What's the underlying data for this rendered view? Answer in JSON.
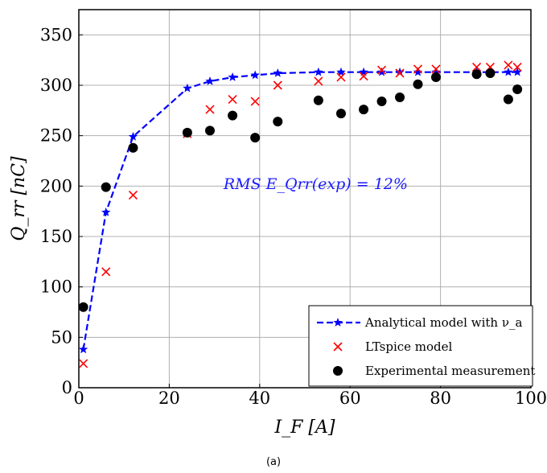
{
  "chart_data": {
    "type": "scatter",
    "title": "",
    "xlabel": "I_F [A]",
    "ylabel": "Q_rr [nC]",
    "xlim": [
      0,
      100
    ],
    "ylim": [
      0,
      375
    ],
    "xticks": [
      0,
      20,
      40,
      60,
      80,
      100
    ],
    "yticks": [
      0,
      50,
      100,
      150,
      200,
      250,
      300,
      350
    ],
    "grid": true,
    "legend_position": "bottom-right",
    "annotation": {
      "text": "RMS E_Qrr(exp) = 12%",
      "color": "#1a1aff",
      "anchor": [
        32,
        197
      ]
    },
    "caption": "(a)",
    "series": [
      {
        "name": "Analytical model with ν_a",
        "style": "dashed-line-star",
        "color": "#0000ff",
        "x": [
          1,
          6,
          12,
          24,
          29,
          34,
          39,
          44,
          53,
          58,
          63,
          67,
          71,
          75,
          79,
          88,
          91,
          95,
          97
        ],
        "y": [
          38,
          174,
          249,
          297,
          304,
          308,
          310,
          312,
          313,
          313,
          313,
          313,
          313,
          313,
          313,
          313,
          313,
          313,
          313
        ]
      },
      {
        "name": "LTspice model",
        "style": "x-marker",
        "color": "#ff0000",
        "x": [
          1,
          6,
          12,
          24,
          29,
          34,
          39,
          44,
          53,
          58,
          63,
          67,
          71,
          75,
          79,
          88,
          91,
          95,
          97
        ],
        "y": [
          24,
          115,
          191,
          252,
          276,
          286,
          284,
          300,
          304,
          308,
          309,
          315,
          312,
          316,
          316,
          318,
          318,
          320,
          318
        ]
      },
      {
        "name": "Experimental measurement",
        "style": "filled-circle",
        "color": "#000000",
        "x": [
          1,
          6,
          12,
          24,
          29,
          34,
          39,
          44,
          53,
          58,
          63,
          67,
          71,
          75,
          79,
          88,
          91,
          95,
          97
        ],
        "y": [
          80,
          199,
          238,
          253,
          255,
          270,
          248,
          264,
          285,
          272,
          276,
          284,
          288,
          301,
          308,
          311,
          312,
          286,
          296
        ]
      }
    ]
  }
}
